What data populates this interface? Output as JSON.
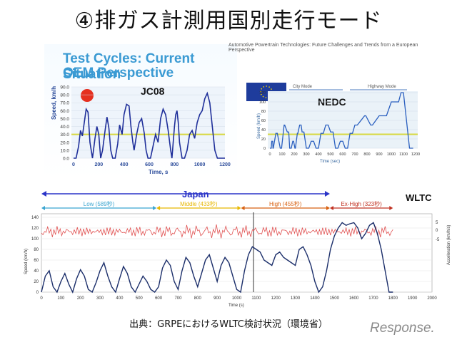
{
  "slide": {
    "title": "④排ガス計測用国別走行モード",
    "header_line": "Automotive Powertrain Technologies: Future Challenges and Trends from a European Perspective",
    "panel_title_1": "Test Cycles: Current Situation",
    "panel_title_2": "OEM Perspective",
    "source": "出典：GRPEにおけるWLTC検討状況（環境省）",
    "logo_text": "Response."
  },
  "colors": {
    "title_blue": "#3a9ad3",
    "jc08_line": "#1f2f9a",
    "nedc_line": "#2a5fbf",
    "threshold": "#d8d840",
    "wltc_speed": "#1b2e6a",
    "wltc_accel": "#e05050",
    "japan_arrow": "#2a34c8",
    "low": "#3aa5d0",
    "middle": "#e8b800",
    "high": "#d86010",
    "exhigh": "#c03020"
  },
  "chart_data": [
    {
      "type": "line",
      "label": "JC08",
      "xlabel": "Time, s",
      "ylabel": "Speed, km/h",
      "xlim": [
        0,
        1200
      ],
      "ylim": [
        0,
        90
      ],
      "xticks": [
        "0",
        "200",
        "400",
        "600",
        "800",
        "1000",
        "1200"
      ],
      "yticks": [
        "0.0",
        "10.0",
        "20.0",
        "30.0",
        "40.0",
        "50.0",
        "60.0",
        "70.0",
        "80.0",
        "90.0"
      ],
      "threshold": 30,
      "series": [
        {
          "x": [
            0,
            20,
            40,
            55,
            70,
            85,
            100,
            115,
            130,
            150,
            170,
            185,
            200,
            215,
            230,
            250,
            265,
            280,
            295,
            310,
            330,
            350,
            365,
            385,
            400,
            420,
            440,
            455,
            470,
            480,
            500,
            520,
            540,
            560,
            575,
            590,
            610,
            630,
            650,
            670,
            690,
            710,
            730,
            750,
            770,
            780,
            790,
            800,
            810,
            820,
            830,
            840,
            860,
            880,
            900,
            920,
            940,
            960,
            980,
            1000,
            1020,
            1040,
            1060,
            1080,
            1100,
            1120,
            1140,
            1160,
            1180,
            1200
          ],
          "values": [
            0,
            0,
            15,
            35,
            28,
            45,
            62,
            58,
            20,
            0,
            25,
            40,
            30,
            0,
            10,
            35,
            52,
            38,
            10,
            0,
            0,
            18,
            42,
            30,
            55,
            68,
            66,
            40,
            20,
            10,
            30,
            45,
            50,
            32,
            10,
            0,
            0,
            15,
            30,
            20,
            50,
            62,
            55,
            35,
            10,
            0,
            20,
            40,
            55,
            60,
            45,
            20,
            0,
            0,
            10,
            30,
            35,
            25,
            45,
            55,
            60,
            75,
            82,
            70,
            40,
            10,
            0,
            0,
            0,
            0
          ]
        }
      ]
    },
    {
      "type": "line",
      "label": "NEDC",
      "xlabel": "Time (sec)",
      "ylabel": "Speed (km/h)",
      "xlim": [
        0,
        1200
      ],
      "ylim": [
        0,
        120
      ],
      "xticks": [
        "0",
        "100",
        "200",
        "300",
        "400",
        "500",
        "600",
        "700",
        "800",
        "900",
        "1000",
        "1100",
        "1200"
      ],
      "yticks": [
        "0",
        "20",
        "40",
        "60",
        "80",
        "100",
        "120"
      ],
      "annotations": [
        "City Mode",
        "Highway Mode"
      ],
      "threshold": 30,
      "series": [
        {
          "x": [
            0,
            11,
            15,
            23,
            25,
            28,
            49,
            61,
            85,
            96,
            117,
            122,
            143,
            155,
            163,
            176,
            188,
            195,
            206,
            210,
            226,
            230,
            245,
            257,
            265,
            280,
            300,
            320,
            340,
            360,
            380,
            400,
            420,
            440,
            460,
            480,
            500,
            520,
            540,
            560,
            580,
            600,
            620,
            640,
            660,
            680,
            700,
            720,
            780,
            790,
            830,
            845,
            900,
            960,
            1000,
            1060,
            1080,
            1100,
            1150,
            1160,
            1170,
            1180
          ],
          "values": [
            0,
            0,
            15,
            15,
            0,
            0,
            32,
            32,
            0,
            0,
            50,
            50,
            35,
            35,
            0,
            0,
            15,
            15,
            0,
            0,
            32,
            32,
            50,
            50,
            35,
            35,
            0,
            0,
            15,
            15,
            0,
            0,
            32,
            32,
            50,
            50,
            35,
            35,
            0,
            0,
            15,
            15,
            0,
            0,
            32,
            32,
            50,
            50,
            70,
            70,
            50,
            50,
            70,
            70,
            100,
            100,
            120,
            120,
            0,
            0,
            0,
            0
          ]
        }
      ]
    },
    {
      "type": "line",
      "label": "WLTC",
      "xlabel": "Time (s)",
      "ylabel": "Speed (km/h)",
      "y2label": "Acceleration (km/h/s)",
      "xlim": [
        0,
        2000
      ],
      "ylim": [
        0,
        140
      ],
      "xticks": [
        "0",
        "100",
        "200",
        "300",
        "400",
        "500",
        "600",
        "700",
        "800",
        "900",
        "1000",
        "1100",
        "1200",
        "1300",
        "1400",
        "1500",
        "1600",
        "1700",
        "1800",
        "1900",
        "2000"
      ],
      "yticks": [
        "0",
        "20",
        "40",
        "60",
        "80",
        "100",
        "120",
        "140"
      ],
      "y2ticks": [
        "5",
        "0",
        "-5"
      ],
      "phases": [
        {
          "name": "Low (589秒)",
          "start": 0,
          "end": 589
        },
        {
          "name": "Middle (433秒)",
          "start": 589,
          "end": 1022
        },
        {
          "name": "High (455秒)",
          "start": 1022,
          "end": 1477
        },
        {
          "name": "Ex-High (323秒)",
          "start": 1477,
          "end": 1800
        }
      ],
      "region_label": "Japan",
      "series": [
        {
          "name": "Speed",
          "x": [
            0,
            20,
            40,
            60,
            80,
            100,
            120,
            140,
            160,
            180,
            200,
            220,
            240,
            260,
            280,
            300,
            320,
            340,
            360,
            380,
            400,
            420,
            440,
            460,
            480,
            500,
            520,
            540,
            560,
            580,
            600,
            620,
            640,
            660,
            680,
            700,
            720,
            740,
            760,
            780,
            800,
            820,
            840,
            860,
            880,
            900,
            920,
            940,
            960,
            980,
            1000,
            1020,
            1040,
            1060,
            1080,
            1100,
            1120,
            1140,
            1160,
            1180,
            1200,
            1220,
            1240,
            1260,
            1280,
            1300,
            1320,
            1340,
            1360,
            1380,
            1400,
            1420,
            1440,
            1460,
            1480,
            1500,
            1520,
            1540,
            1560,
            1580,
            1600,
            1620,
            1640,
            1660,
            1680,
            1700,
            1720,
            1740,
            1760,
            1780,
            1800
          ],
          "values": [
            0,
            30,
            40,
            10,
            0,
            20,
            35,
            15,
            0,
            25,
            42,
            30,
            5,
            0,
            18,
            40,
            55,
            30,
            10,
            0,
            25,
            48,
            35,
            10,
            0,
            15,
            30,
            20,
            5,
            0,
            10,
            45,
            60,
            50,
            20,
            5,
            40,
            65,
            55,
            30,
            10,
            35,
            60,
            70,
            45,
            20,
            50,
            65,
            55,
            30,
            5,
            0,
            40,
            70,
            85,
            80,
            75,
            60,
            55,
            50,
            70,
            75,
            65,
            60,
            55,
            50,
            80,
            85,
            70,
            50,
            20,
            0,
            10,
            40,
            80,
            105,
            120,
            130,
            125,
            128,
            130,
            120,
            100,
            110,
            125,
            130,
            110,
            80,
            40,
            0,
            0
          ]
        }
      ]
    }
  ]
}
